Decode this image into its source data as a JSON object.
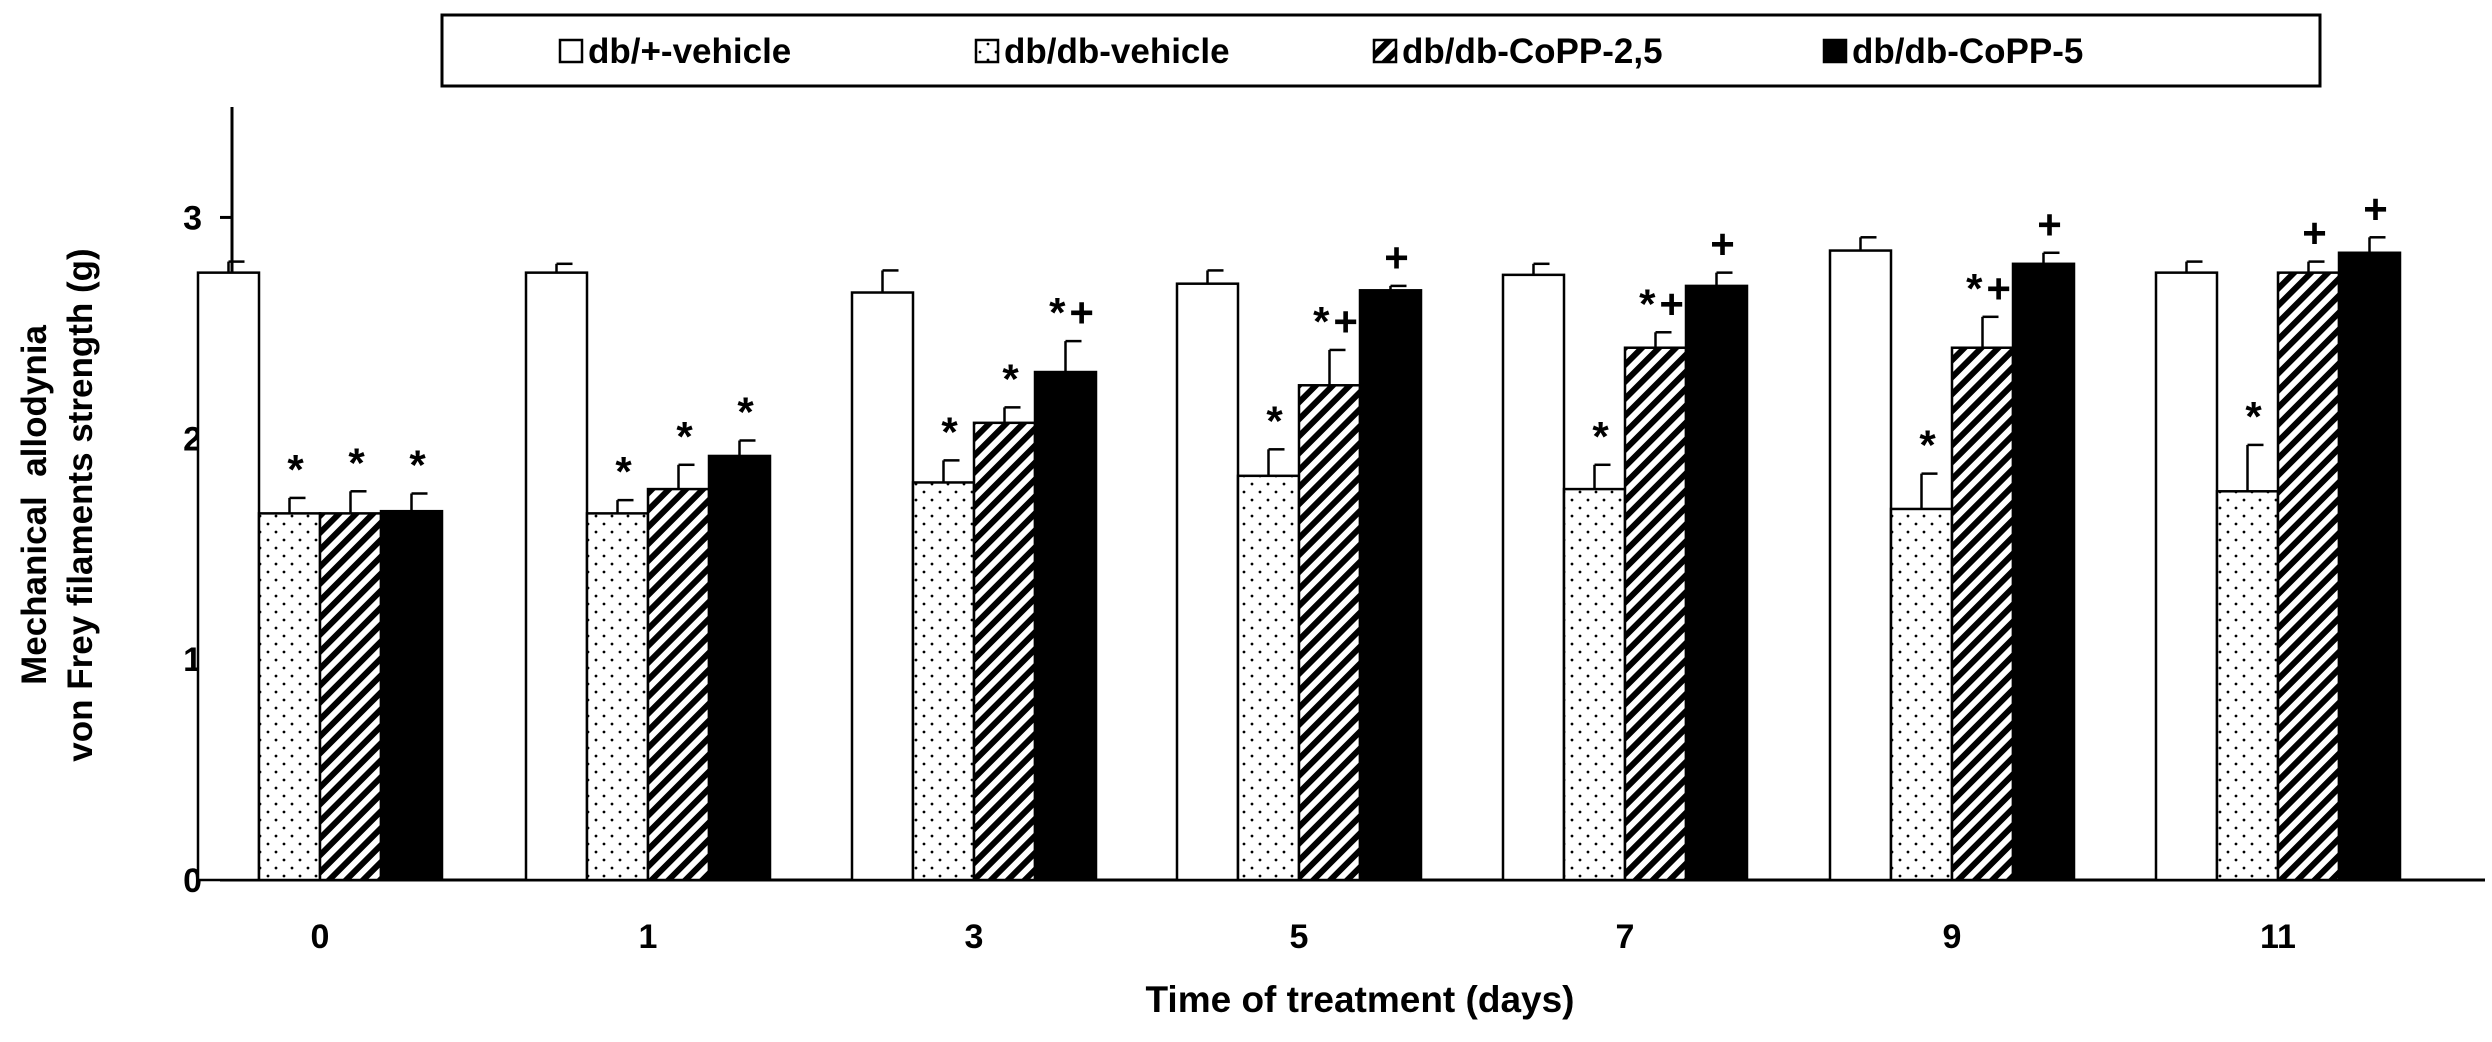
{
  "chart_data": {
    "type": "bar",
    "title": "",
    "xlabel": "Time of treatment (days)",
    "ylabel_lines": [
      "Mechanical  allodynia",
      "von Frey filaments strength (g)"
    ],
    "ylim": [
      0,
      3.5
    ],
    "yticks": [
      "0",
      "1",
      "2",
      "3"
    ],
    "grid": false,
    "legend_position": "top",
    "categories": [
      "0",
      "1",
      "3",
      "5",
      "7",
      "9",
      "11"
    ],
    "series": [
      {
        "name": "db/+-vehicle",
        "pattern": "white",
        "values": [
          2.75,
          2.75,
          2.66,
          2.7,
          2.74,
          2.85,
          2.75
        ],
        "errors": [
          0.05,
          0.04,
          0.1,
          0.06,
          0.05,
          0.06,
          0.05
        ],
        "annotations": [
          "",
          "",
          "",
          "",
          "",
          "",
          ""
        ]
      },
      {
        "name": "db/db-vehicle",
        "pattern": "dotted",
        "values": [
          1.66,
          1.66,
          1.8,
          1.83,
          1.77,
          1.68,
          1.76
        ],
        "errors": [
          0.07,
          0.06,
          0.1,
          0.12,
          0.11,
          0.16,
          0.21
        ],
        "annotations": [
          "*",
          "*",
          "*",
          "*",
          "*",
          "*",
          "*"
        ]
      },
      {
        "name": "db/db-CoPP-2,5",
        "pattern": "hatched",
        "values": [
          1.66,
          1.77,
          2.07,
          2.24,
          2.41,
          2.41,
          2.75
        ],
        "errors": [
          0.1,
          0.11,
          0.07,
          0.16,
          0.07,
          0.14,
          0.05
        ],
        "annotations": [
          "*",
          "*",
          "*",
          "*+",
          "*+",
          "*+",
          "+"
        ]
      },
      {
        "name": "db/db-CoPP-5",
        "pattern": "black",
        "values": [
          1.67,
          1.92,
          2.3,
          2.67,
          2.69,
          2.79,
          2.84
        ],
        "errors": [
          0.08,
          0.07,
          0.14,
          0.02,
          0.06,
          0.05,
          0.07
        ],
        "annotations": [
          "*",
          "*",
          "*+",
          "+",
          "+",
          "+",
          "+"
        ]
      }
    ]
  },
  "colors": {
    "ink": "#000000",
    "paper": "#ffffff"
  }
}
